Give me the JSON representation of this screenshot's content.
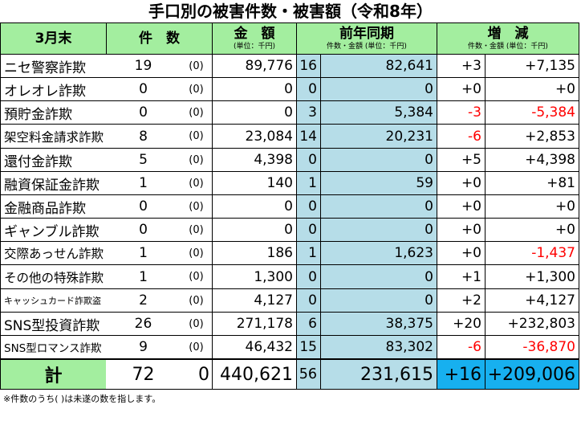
{
  "title": "手口別の被害件数・被害額（令和8年）",
  "header": [
    {
      "text": "3月末"
    },
    {
      "text": "件　数"
    },
    {
      "text": "金　額",
      "sub": "(単位：千円)"
    },
    {
      "text": "前年同期",
      "sub": "件数・金額 (単位：千円)"
    },
    {
      "text": "増　減",
      "sub": "件数・金額 (単位：千円)"
    }
  ],
  "rows": [
    [
      "ニセ警察詐欺",
      "19",
      "(0)",
      "89,776",
      "16",
      "82,641",
      "+3",
      "+7,135"
    ],
    [
      "オレオレ詐欺",
      "0",
      "(0)",
      "0",
      "0",
      "0",
      "+0",
      "+0"
    ],
    [
      "預貯金詐欺",
      "0",
      "(0)",
      "0",
      "3",
      "5,384",
      "-3",
      "-5,384"
    ],
    [
      "架空料金請求詐欺",
      "8",
      "(0)",
      "23,084",
      "14",
      "20,231",
      "-6",
      "+2,853"
    ],
    [
      "還付金詐欺",
      "5",
      "(0)",
      "4,398",
      "0",
      "0",
      "+5",
      "+4,398"
    ],
    [
      "融資保証金詐欺",
      "1",
      "(0)",
      "140",
      "1",
      "59",
      "+0",
      "+81"
    ],
    [
      "金融商品詐欺",
      "0",
      "(0)",
      "0",
      "0",
      "0",
      "+0",
      "+0"
    ],
    [
      "ギャンブル詐欺",
      "0",
      "(0)",
      "0",
      "0",
      "0",
      "+0",
      "+0"
    ],
    [
      "交際あっせん詐欺",
      "1",
      "(0)",
      "186",
      "1",
      "1,623",
      "+0",
      "-1,437"
    ],
    [
      "その他の特殊詐欺",
      "1",
      "(0)",
      "1,300",
      "0",
      "0",
      "+1",
      "+1,300"
    ],
    [
      "キャッシュカード詐欺盗",
      "2",
      "(0)",
      "4,127",
      "0",
      "0",
      "+2",
      "+4,127"
    ],
    [
      "SNS型投資詐欺",
      "26",
      "(0)",
      "271,178",
      "6",
      "38,375",
      "+20",
      "+232,803"
    ],
    [
      "SNS型ロマンス詐欺",
      "9",
      "(0)",
      "46,432",
      "15",
      "83,302",
      "-6",
      "-36,870"
    ]
  ],
  "total": [
    "計",
    "72",
    "0",
    "440,621",
    "56",
    "231,615",
    "+16",
    "+209,006"
  ],
  "note": "※件数のうち( )は未遂の数を指します。"
}
